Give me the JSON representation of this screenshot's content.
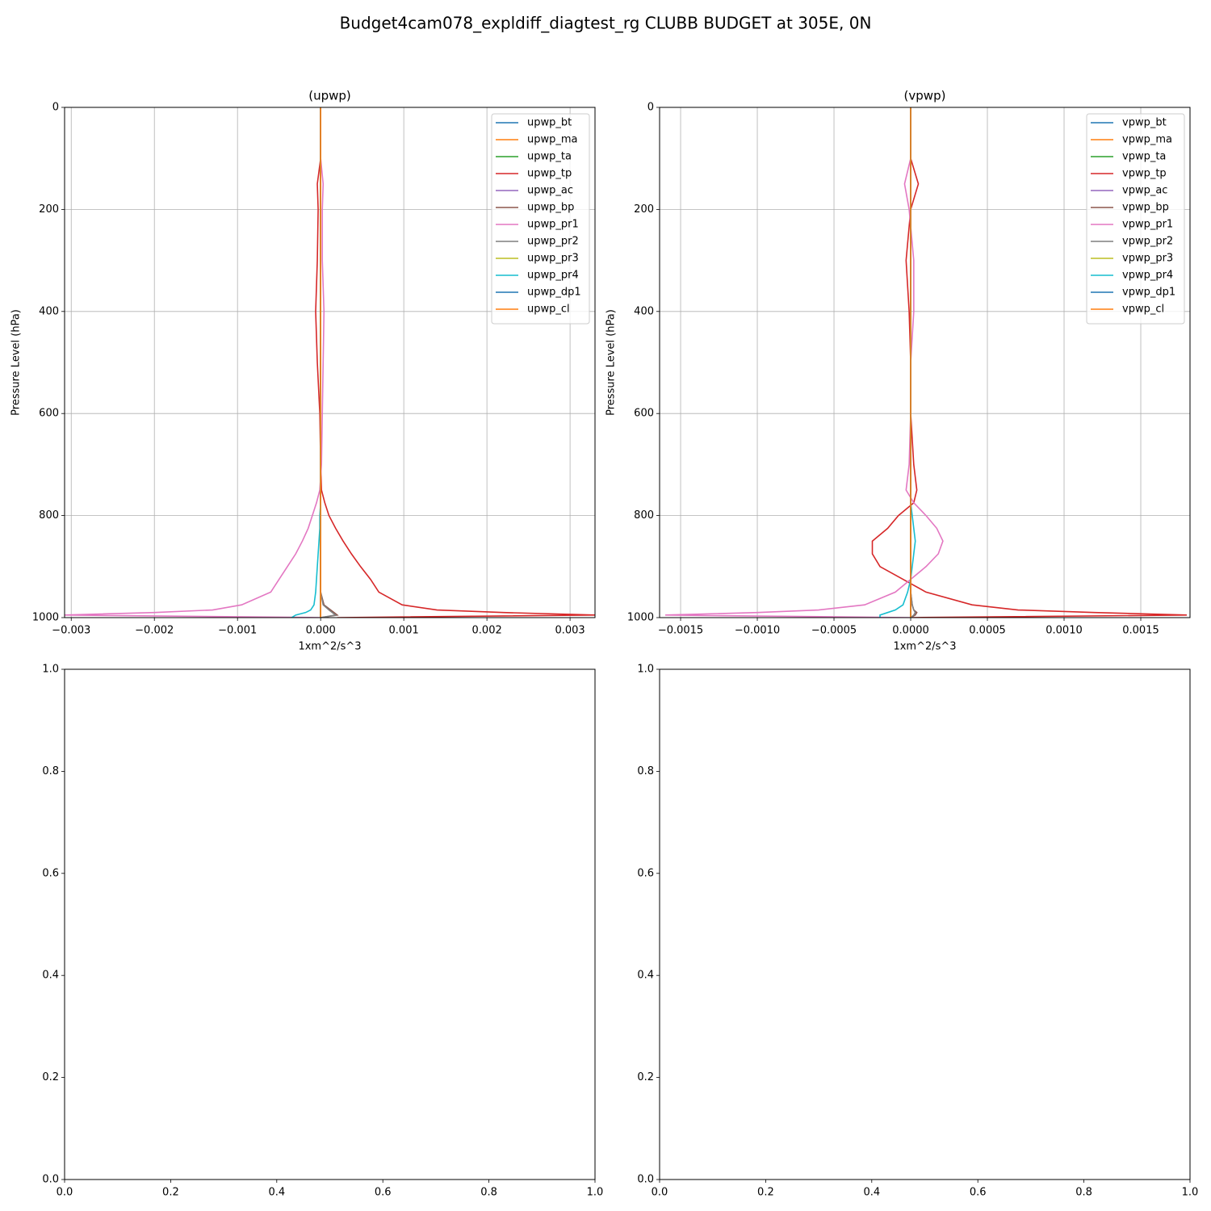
{
  "title": "Budget4cam078_expldiff_diagtest_rg CLUBB BUDGET at 305E, 0N",
  "chart_data": [
    {
      "type": "line",
      "title": "(upwp)",
      "xlabel": "1xm^2/s^3",
      "ylabel": "Pressure Level (hPa)",
      "grid": true,
      "legend": "upper right",
      "xlim": [
        -0.00308,
        0.0033
      ],
      "ylim": [
        1000,
        0
      ],
      "xticks": [
        {
          "value": -0.003,
          "label": "−0.003"
        },
        {
          "value": -0.002,
          "label": "−0.002"
        },
        {
          "value": -0.001,
          "label": "−0.001"
        },
        {
          "value": 0,
          "label": "0.000"
        },
        0.001,
        0.002,
        0.003
      ],
      "yticks": [
        0,
        200,
        400,
        600,
        800,
        1000
      ],
      "levels": [
        0,
        100,
        150,
        200,
        300,
        400,
        500,
        600,
        700,
        750,
        775,
        800,
        825,
        850,
        875,
        900,
        925,
        950,
        975,
        985,
        990,
        995,
        1000
      ],
      "series": [
        {
          "name": "upwp_bt",
          "color": "#1f77b4",
          "values": [
            0,
            0,
            0,
            0,
            0,
            0,
            0,
            0,
            0,
            0,
            0,
            0,
            0,
            0,
            0,
            0,
            0,
            0,
            0,
            0,
            0,
            0,
            0
          ]
        },
        {
          "name": "upwp_ma",
          "color": "#ff7f0e",
          "values": [
            0,
            0,
            0,
            0,
            0,
            0,
            0,
            0,
            0,
            0,
            0,
            0,
            0,
            0,
            0,
            0,
            0,
            0,
            0,
            0,
            0,
            0,
            0
          ]
        },
        {
          "name": "upwp_ta",
          "color": "#2ca02c",
          "values": [
            0,
            0,
            0,
            0,
            0,
            0,
            0,
            0,
            0,
            0,
            0,
            0,
            0,
            0,
            0,
            0,
            0,
            0,
            0,
            0,
            0,
            0,
            0
          ]
        },
        {
          "name": "upwp_tp",
          "color": "#d62728",
          "values": [
            0,
            0,
            -4e-05,
            -3e-05,
            -4e-05,
            -6e-05,
            -4e-05,
            -1e-05,
            0,
            1e-05,
            5e-05,
            0.0001,
            0.00018,
            0.00027,
            0.00037,
            0.00048,
            0.0006,
            0.0007,
            0.00098,
            0.0014,
            0.0022,
            0.0033,
            0.0002
          ]
        },
        {
          "name": "upwp_ac",
          "color": "#9467bd",
          "values": [
            0,
            0,
            0,
            0,
            0,
            0,
            0,
            0,
            0,
            0,
            0,
            0,
            0,
            0,
            0,
            0,
            0,
            0,
            0,
            0,
            0,
            0,
            0
          ]
        },
        {
          "name": "upwp_bp",
          "color": "#8c564b",
          "values": [
            0,
            0,
            0,
            0,
            0,
            0,
            0,
            0,
            0,
            0,
            0,
            0,
            0,
            0,
            0,
            0,
            0,
            0,
            4e-05,
            0.00012,
            0.00016,
            0.0002,
            0
          ]
        },
        {
          "name": "upwp_pr1",
          "color": "#e377c2",
          "values": [
            0,
            0,
            3e-05,
            2e-05,
            2e-05,
            4e-05,
            3e-05,
            2e-05,
            1e-05,
            -1e-05,
            -5e-05,
            -0.0001,
            -0.00015,
            -0.00022,
            -0.0003,
            -0.0004,
            -0.0005,
            -0.0006,
            -0.00095,
            -0.0013,
            -0.002,
            -0.0031,
            0
          ]
        },
        {
          "name": "upwp_pr2",
          "color": "#7f7f7f",
          "values": [
            0,
            0,
            0,
            0,
            0,
            0,
            0,
            0,
            0,
            0,
            0,
            0,
            0,
            0,
            0,
            0,
            0,
            0,
            3e-05,
            0.0001,
            0.00014,
            0.00018,
            0
          ]
        },
        {
          "name": "upwp_pr3",
          "color": "#bcbd22",
          "values": [
            0,
            0,
            0,
            0,
            0,
            0,
            0,
            0,
            0,
            0,
            0,
            0,
            0,
            0,
            0,
            0,
            0,
            0,
            0,
            0,
            0,
            0,
            0
          ]
        },
        {
          "name": "upwp_pr4",
          "color": "#17becf",
          "values": [
            0,
            0,
            0,
            0,
            0,
            0,
            0,
            0,
            0,
            0,
            0,
            -1e-05,
            -1e-05,
            -2e-05,
            -3e-05,
            -4e-05,
            -5e-05,
            -6e-05,
            -8e-05,
            -0.00012,
            -0.00018,
            -0.0003,
            -0.00035
          ]
        },
        {
          "name": "upwp_dp1",
          "color": "#1f77b4",
          "values": [
            0,
            0,
            0,
            0,
            0,
            0,
            0,
            0,
            0,
            0,
            0,
            0,
            0,
            0,
            0,
            0,
            0,
            0,
            0,
            0,
            0,
            0,
            0
          ]
        },
        {
          "name": "upwp_cl",
          "color": "#ff7f0e",
          "values": [
            0,
            0,
            0,
            0,
            0,
            0,
            0,
            0,
            0,
            0,
            0,
            0,
            0,
            0,
            0,
            0,
            0,
            0,
            0,
            0,
            0,
            0,
            0
          ]
        }
      ]
    },
    {
      "type": "line",
      "title": "(vpwp)",
      "xlabel": "1xm^2/s^3",
      "ylabel": "Pressure Level (hPa)",
      "grid": true,
      "legend": "upper right",
      "xlim": [
        -0.001637,
        0.001821
      ],
      "ylim": [
        1000,
        0
      ],
      "xticks": [
        {
          "value": -0.0015,
          "label": "−0.0015"
        },
        {
          "value": -0.001,
          "label": "−0.0010"
        },
        {
          "value": -0.0005,
          "label": "−0.0005"
        },
        {
          "value": 0,
          "label": "0.0000"
        },
        0.0005,
        {
          "value": 0.001,
          "label": "0.0010"
        },
        0.0015
      ],
      "yticks": [
        0,
        200,
        400,
        600,
        800,
        1000
      ],
      "levels": [
        0,
        100,
        150,
        200,
        300,
        400,
        500,
        600,
        700,
        750,
        775,
        800,
        825,
        850,
        875,
        900,
        925,
        950,
        975,
        985,
        990,
        995,
        1000
      ],
      "series": [
        {
          "name": "vpwp_bt",
          "color": "#1f77b4",
          "values": [
            0,
            0,
            0,
            0,
            0,
            0,
            0,
            0,
            0,
            0,
            0,
            0,
            0,
            0,
            0,
            0,
            0,
            0,
            0,
            0,
            0,
            0,
            0
          ]
        },
        {
          "name": "vpwp_ma",
          "color": "#ff7f0e",
          "values": [
            0,
            0,
            0,
            0,
            0,
            0,
            0,
            0,
            0,
            0,
            0,
            0,
            0,
            0,
            0,
            0,
            0,
            0,
            0,
            0,
            0,
            0,
            0
          ]
        },
        {
          "name": "vpwp_ta",
          "color": "#2ca02c",
          "values": [
            0,
            0,
            0,
            0,
            0,
            0,
            0,
            0,
            0,
            0,
            0,
            0,
            0,
            0,
            0,
            0,
            0,
            0,
            0,
            0,
            0,
            0,
            0
          ]
        },
        {
          "name": "vpwp_tp",
          "color": "#d62728",
          "values": [
            0,
            0,
            5e-05,
            0,
            -3e-05,
            -1e-05,
            0,
            0,
            2e-05,
            4e-05,
            2e-05,
            -8e-05,
            -0.00015,
            -0.00025,
            -0.00025,
            -0.0002,
            -5e-05,
            0.0001,
            0.0004,
            0.0007,
            0.0012,
            0.0018,
            0
          ]
        },
        {
          "name": "vpwp_ac",
          "color": "#9467bd",
          "values": [
            0,
            0,
            0,
            0,
            0,
            0,
            0,
            0,
            0,
            0,
            0,
            0,
            0,
            0,
            0,
            0,
            0,
            0,
            0,
            0,
            0,
            0,
            0
          ]
        },
        {
          "name": "vpwp_bp",
          "color": "#8c564b",
          "values": [
            0,
            0,
            0,
            0,
            0,
            0,
            0,
            0,
            0,
            0,
            0,
            0,
            0,
            0,
            0,
            0,
            0,
            0,
            1e-05,
            2e-05,
            4e-05,
            3e-05,
            0
          ]
        },
        {
          "name": "vpwp_pr1",
          "color": "#e377c2",
          "values": [
            0,
            0,
            -4e-05,
            -1e-05,
            2e-05,
            2e-05,
            0,
            0,
            -1e-05,
            -3e-05,
            2e-05,
            0.0001,
            0.00017,
            0.00021,
            0.00018,
            0.0001,
            0,
            -0.0001,
            -0.0003,
            -0.0006,
            -0.001,
            -0.0016,
            0
          ]
        },
        {
          "name": "vpwp_pr2",
          "color": "#7f7f7f",
          "values": [
            0,
            0,
            0,
            0,
            0,
            0,
            0,
            0,
            0,
            0,
            0,
            0,
            0,
            0,
            0,
            0,
            0,
            0,
            1e-05,
            2e-05,
            3e-05,
            2e-05,
            0
          ]
        },
        {
          "name": "vpwp_pr3",
          "color": "#bcbd22",
          "values": [
            0,
            0,
            0,
            0,
            0,
            0,
            0,
            0,
            0,
            0,
            0,
            0,
            0,
            0,
            0,
            0,
            0,
            0,
            0,
            0,
            0,
            0,
            0
          ]
        },
        {
          "name": "vpwp_pr4",
          "color": "#17becf",
          "values": [
            0,
            0,
            0,
            0,
            0,
            0,
            0,
            0,
            0,
            0,
            0,
            1e-05,
            2e-05,
            3e-05,
            2e-05,
            1e-05,
            0,
            -2e-05,
            -5e-05,
            -0.0001,
            -0.00015,
            -0.0002,
            -0.0002
          ]
        },
        {
          "name": "vpwp_dp1",
          "color": "#1f77b4",
          "values": [
            0,
            0,
            0,
            0,
            0,
            0,
            0,
            0,
            0,
            0,
            0,
            0,
            0,
            0,
            0,
            0,
            0,
            0,
            0,
            0,
            0,
            0,
            0
          ]
        },
        {
          "name": "vpwp_cl",
          "color": "#ff7f0e",
          "values": [
            0,
            0,
            0,
            0,
            0,
            0,
            0,
            0,
            0,
            0,
            0,
            0,
            0,
            0,
            0,
            0,
            0,
            0,
            0,
            0,
            0,
            0,
            0
          ]
        }
      ]
    },
    {
      "type": "empty",
      "grid": false,
      "xlim": [
        0,
        1
      ],
      "ylim": [
        0,
        1
      ],
      "xticks": [
        {
          "value": 0,
          "label": "0.0"
        },
        0.2,
        0.4,
        0.6,
        0.8,
        {
          "value": 1,
          "label": "1.0"
        }
      ],
      "yticks": [
        {
          "value": 0,
          "label": "0.0"
        },
        0.2,
        0.4,
        0.6,
        0.8,
        {
          "value": 1,
          "label": "1.0"
        }
      ]
    },
    {
      "type": "empty",
      "grid": false,
      "xlim": [
        0,
        1
      ],
      "ylim": [
        0,
        1
      ],
      "xticks": [
        {
          "value": 0,
          "label": "0.0"
        },
        0.2,
        0.4,
        0.6,
        0.8,
        {
          "value": 1,
          "label": "1.0"
        }
      ],
      "yticks": [
        {
          "value": 0,
          "label": "0.0"
        },
        0.2,
        0.4,
        0.6,
        0.8,
        {
          "value": 1,
          "label": "1.0"
        }
      ]
    }
  ]
}
